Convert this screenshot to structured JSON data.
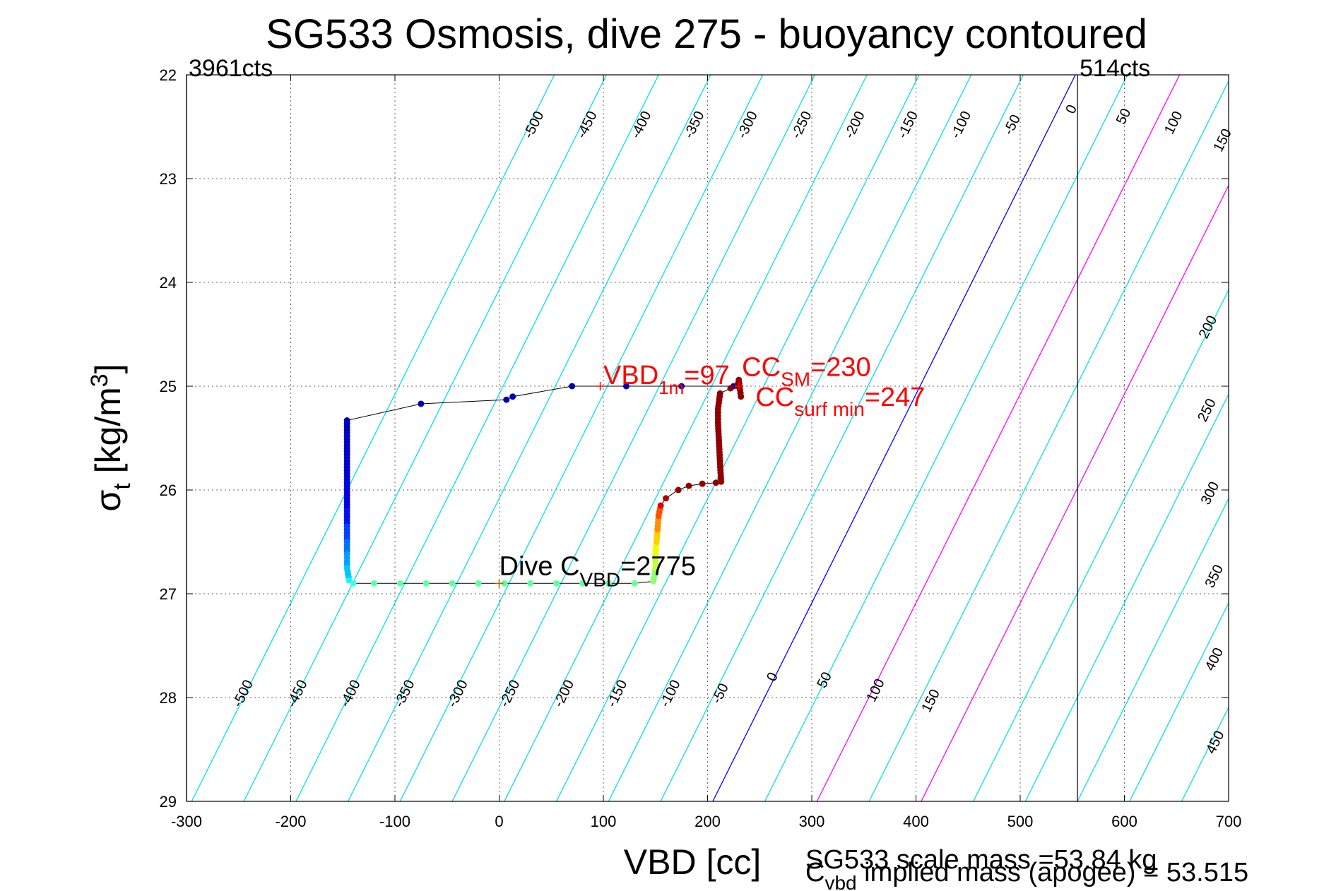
{
  "chart_data": {
    "type": "scatter",
    "title": "SG533 Osmosis, dive 275 - buoyancy contoured",
    "xlabel": "VBD [cc]",
    "ylabel": "σt [kg/m3]",
    "ylabel_main": "σ",
    "ylabel_sub": "t",
    "ylabel_unit": " [kg/m",
    "ylabel_sup": "3",
    "ylabel_close": "]",
    "xlim": [
      -300,
      700
    ],
    "ylim": [
      29,
      22
    ],
    "xticks": [
      "-300",
      "-200",
      "-100",
      "0",
      "100",
      "200",
      "300",
      "400",
      "500",
      "600",
      "700"
    ],
    "yticks": [
      "22",
      "23",
      "24",
      "25",
      "26",
      "27",
      "28",
      "29"
    ],
    "grid": true,
    "counts_left": "3961cts",
    "counts_right": "514cts",
    "counts_left_x": -300,
    "counts_right_x": 555,
    "contours": {
      "levels": [
        -500,
        -450,
        -400,
        -350,
        -300,
        -250,
        -200,
        -150,
        -100,
        -50,
        0,
        50,
        100,
        150,
        200,
        250,
        300,
        350,
        400,
        450
      ],
      "labels": [
        "-500",
        "-450",
        "-400",
        "-350",
        "-300",
        "-250",
        "-200",
        "-150",
        "-100",
        "-50",
        "0",
        "50",
        "100",
        "150",
        "200",
        "250",
        "300",
        "350",
        "400",
        "450"
      ],
      "bottom_anchor_x": 205,
      "top_anchor_x": 553,
      "zero_color": "#0000ff",
      "highlight_levels": [
        100,
        200
      ],
      "highlight_color": "#ff00ff",
      "default_color": "#00e0e8",
      "upper_labels": [
        {
          "text": "-500",
          "x": 37,
          "y": 22.5
        },
        {
          "text": "-450",
          "x": 88,
          "y": 22.5
        },
        {
          "text": "-400",
          "x": 140,
          "y": 22.5
        },
        {
          "text": "-350",
          "x": 191,
          "y": 22.5
        },
        {
          "text": "-300",
          "x": 242,
          "y": 22.5
        },
        {
          "text": "-250",
          "x": 294,
          "y": 22.5
        },
        {
          "text": "-200",
          "x": 345,
          "y": 22.5
        },
        {
          "text": "-150",
          "x": 396,
          "y": 22.5
        },
        {
          "text": "-100",
          "x": 447,
          "y": 22.5
        },
        {
          "text": "-50",
          "x": 496,
          "y": 22.5
        },
        {
          "text": "0",
          "x": 553,
          "y": 22.35
        },
        {
          "text": "50",
          "x": 603,
          "y": 22.42
        },
        {
          "text": "100",
          "x": 651,
          "y": 22.48
        },
        {
          "text": "150",
          "x": 698,
          "y": 22.65
        },
        {
          "text": "200",
          "x": 684,
          "y": 24.45
        },
        {
          "text": "250",
          "x": 683,
          "y": 25.25
        },
        {
          "text": "300",
          "x": 686,
          "y": 26.05
        },
        {
          "text": "350",
          "x": 690,
          "y": 26.85
        },
        {
          "text": "400",
          "x": 690,
          "y": 27.65
        },
        {
          "text": "450",
          "x": 691,
          "y": 28.45
        }
      ],
      "lower_labels": [
        {
          "text": "-500",
          "x": -242,
          "y": 27.98
        },
        {
          "text": "-450",
          "x": -190,
          "y": 27.98
        },
        {
          "text": "-400",
          "x": -139,
          "y": 27.98
        },
        {
          "text": "-350",
          "x": -87,
          "y": 27.98
        },
        {
          "text": "-300",
          "x": -36,
          "y": 27.98
        },
        {
          "text": "-250",
          "x": 14,
          "y": 27.98
        },
        {
          "text": "-200",
          "x": 66,
          "y": 27.98
        },
        {
          "text": "-150",
          "x": 117,
          "y": 27.98
        },
        {
          "text": "-100",
          "x": 168,
          "y": 27.98
        },
        {
          "text": "-50",
          "x": 216,
          "y": 27.98
        },
        {
          "text": "0",
          "x": 266,
          "y": 27.82
        },
        {
          "text": "50",
          "x": 316,
          "y": 27.85
        },
        {
          "text": "100",
          "x": 365,
          "y": 27.95
        },
        {
          "text": "150",
          "x": 418,
          "y": 28.05
        }
      ]
    },
    "trajectory": {
      "line_color": "#000000",
      "points": [
        {
          "x": 225,
          "y": 25.0,
          "c": "#0000b0"
        },
        {
          "x": 175,
          "y": 25.0,
          "c": "#0000b0"
        },
        {
          "x": 122,
          "y": 25.0,
          "c": "#0000b0"
        },
        {
          "x": 70,
          "y": 25.0,
          "c": "#0000b0"
        },
        {
          "x": 13,
          "y": 25.1,
          "c": "#0000b0"
        },
        {
          "x": 7,
          "y": 25.13,
          "c": "#0000b0"
        },
        {
          "x": -75,
          "y": 25.17,
          "c": "#0000b0"
        },
        {
          "x": -146,
          "y": 25.33,
          "c": "#0000b0"
        },
        {
          "x": -146,
          "y": 25.45,
          "c": "#0000c0"
        },
        {
          "x": -146,
          "y": 25.6,
          "c": "#0000c8"
        },
        {
          "x": -146,
          "y": 25.75,
          "c": "#0000d0"
        },
        {
          "x": -146,
          "y": 25.9,
          "c": "#0000d8"
        },
        {
          "x": -146,
          "y": 26.05,
          "c": "#0000e0"
        },
        {
          "x": -146,
          "y": 26.2,
          "c": "#0010f0"
        },
        {
          "x": -146,
          "y": 26.35,
          "c": "#0040ff"
        },
        {
          "x": -146,
          "y": 26.5,
          "c": "#0070ff"
        },
        {
          "x": -146,
          "y": 26.62,
          "c": "#00a0ff"
        },
        {
          "x": -146,
          "y": 26.75,
          "c": "#00c8ff"
        },
        {
          "x": -144,
          "y": 26.87,
          "c": "#20f0ff"
        },
        {
          "x": -140,
          "y": 26.9,
          "c": "#40ffe0"
        },
        {
          "x": -120,
          "y": 26.9,
          "c": "#60ffa0"
        },
        {
          "x": -95,
          "y": 26.9,
          "c": "#60ffa0"
        },
        {
          "x": -70,
          "y": 26.9,
          "c": "#60ffa0"
        },
        {
          "x": -45,
          "y": 26.9,
          "c": "#60ffa0"
        },
        {
          "x": -20,
          "y": 26.9,
          "c": "#60ffa0"
        },
        {
          "x": 5,
          "y": 26.9,
          "c": "#60ffa0"
        },
        {
          "x": 30,
          "y": 26.9,
          "c": "#60ffa0"
        },
        {
          "x": 55,
          "y": 26.9,
          "c": "#60ffa0"
        },
        {
          "x": 80,
          "y": 26.9,
          "c": "#60ffa0"
        },
        {
          "x": 105,
          "y": 26.9,
          "c": "#60ffa0"
        },
        {
          "x": 130,
          "y": 26.9,
          "c": "#70ff90"
        },
        {
          "x": 148,
          "y": 26.88,
          "c": "#90ff70"
        },
        {
          "x": 150,
          "y": 26.75,
          "c": "#c0ff40"
        },
        {
          "x": 150,
          "y": 26.62,
          "c": "#f0ff00"
        },
        {
          "x": 151,
          "y": 26.5,
          "c": "#ffd000"
        },
        {
          "x": 152,
          "y": 26.38,
          "c": "#ff9000"
        },
        {
          "x": 153,
          "y": 26.25,
          "c": "#ff5000"
        },
        {
          "x": 155,
          "y": 26.15,
          "c": "#e00000"
        },
        {
          "x": 160,
          "y": 26.08,
          "c": "#b00000"
        },
        {
          "x": 172,
          "y": 26.0,
          "c": "#900000"
        },
        {
          "x": 182,
          "y": 25.96,
          "c": "#900000"
        },
        {
          "x": 195,
          "y": 25.94,
          "c": "#900000"
        },
        {
          "x": 208,
          "y": 25.93,
          "c": "#900000"
        },
        {
          "x": 213,
          "y": 25.92,
          "c": "#900000"
        },
        {
          "x": 212,
          "y": 25.75,
          "c": "#900000"
        },
        {
          "x": 211,
          "y": 25.55,
          "c": "#900000"
        },
        {
          "x": 210,
          "y": 25.35,
          "c": "#900000"
        },
        {
          "x": 210,
          "y": 25.22,
          "c": "#900000"
        },
        {
          "x": 212,
          "y": 25.07,
          "c": "#900000"
        },
        {
          "x": 222,
          "y": 25.02,
          "c": "#900000"
        },
        {
          "x": 229,
          "y": 25.0,
          "c": "#900000"
        },
        {
          "x": 230,
          "y": 24.94,
          "c": "#900000"
        },
        {
          "x": 232,
          "y": 25.1,
          "c": "#900000"
        }
      ]
    },
    "markers": [
      {
        "x": 97,
        "y": 25.0,
        "color": "#ff0000"
      },
      {
        "x": 230,
        "y": 25.0,
        "color": "#ff0000"
      },
      {
        "x": 0,
        "y": 26.9,
        "color": "#c06000"
      }
    ],
    "annotations": {
      "vbd1m_main": "VBD",
      "vbd1m_sub": "1m",
      "vbd1m_value": "=97",
      "vbd1m_x": 100,
      "vbd1m_y": 24.98,
      "ccsm_main": "CC",
      "ccsm_sub": "SM",
      "ccsm_value": "=230",
      "ccsm_x": 233,
      "ccsm_y": 24.9,
      "ccsurf_main": "CC",
      "ccsurf_sub": "surf min",
      "ccsurf_value": "=247",
      "ccsurf_x": 246,
      "ccsurf_y": 25.19,
      "dive_main": "Dive C",
      "dive_sub": "VBD",
      "dive_value": "=2775",
      "dive_x": 0,
      "dive_y": 26.82
    },
    "notes": {
      "scale_mass": "SG533 scale mass =53.84 kg",
      "implied_main": "C",
      "implied_sub": "vbd",
      "implied_rest": " implied mass (apogee) = 53.515"
    }
  },
  "colors": {
    "annotation_red": "#ff0000",
    "contour_cyan": "#00e0e8",
    "contour_zero": "#0000ff",
    "contour_magenta": "#ff00ff"
  }
}
